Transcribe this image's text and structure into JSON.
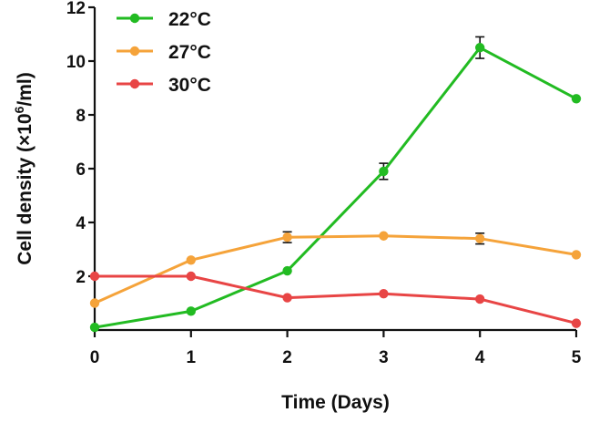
{
  "chart_data": {
    "type": "line",
    "title": "",
    "xlabel": "Time (Days)",
    "ylabel": {
      "prefix": "Cell density (×10",
      "superscript": "6",
      "suffix": "/ml)"
    },
    "x": [
      0,
      1,
      2,
      3,
      4,
      5
    ],
    "x_tick_labels": [
      "0",
      "1",
      "2",
      "3",
      "4",
      "5"
    ],
    "xlim": [
      0,
      5
    ],
    "ylim": [
      0,
      12
    ],
    "y_ticks": [
      2,
      4,
      6,
      8,
      10,
      12
    ],
    "y_tick_labels": [
      "2",
      "4",
      "6",
      "8",
      "10",
      "12"
    ],
    "grid": false,
    "legend_position": "top-left",
    "series": [
      {
        "name": "22°C",
        "color": "#22bb22",
        "values": [
          0.1,
          0.7,
          2.2,
          5.9,
          10.5,
          8.6
        ],
        "errors": [
          0,
          0,
          0,
          0.3,
          0.4,
          0
        ]
      },
      {
        "name": "27°C",
        "color": "#f5a33a",
        "values": [
          1.0,
          2.6,
          3.45,
          3.5,
          3.4,
          2.8
        ],
        "errors": [
          0,
          0,
          0.2,
          0,
          0.2,
          0
        ]
      },
      {
        "name": "30°C",
        "color": "#e84545",
        "values": [
          2.0,
          2.0,
          1.2,
          1.35,
          1.15,
          0.25
        ],
        "errors": [
          0,
          0,
          0,
          0,
          0,
          0
        ]
      }
    ]
  }
}
